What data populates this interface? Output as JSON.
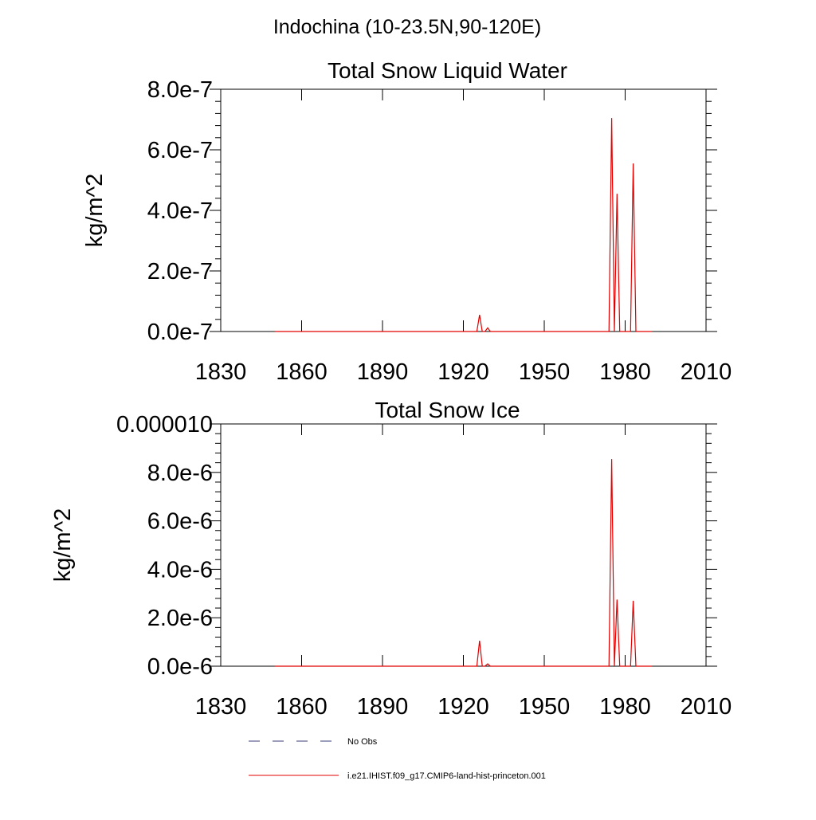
{
  "figure": {
    "title": "Indochina (10-23.5N,90-120E)"
  },
  "legend": {
    "items": [
      {
        "label": "No Obs",
        "color": "#3b3b7a",
        "dash": true
      },
      {
        "label": "i.e21.IHIST.f09_g17.CMIP6-land-hist-princeton.001",
        "color": "#e00000",
        "dash": false
      }
    ]
  },
  "chart_data": [
    {
      "type": "line",
      "title": "Total Snow Liquid Water",
      "xlabel": "",
      "ylabel": "kg/m^2",
      "xlim": [
        1830,
        2010
      ],
      "ylim": [
        0,
        8e-07
      ],
      "grid": false,
      "legend_position": "bottom",
      "xticks": [
        1830,
        1860,
        1890,
        1920,
        1950,
        1980,
        2010
      ],
      "yticks": [
        0,
        2e-07,
        4e-07,
        6e-07,
        8e-07
      ],
      "ytick_labels": [
        "0.0e-7",
        "2.0e-7",
        "4.0e-7",
        "6.0e-7",
        "8.0e-7"
      ],
      "series": [
        {
          "name": "i.e21.IHIST.f09_g17.CMIP6-land-hist-princeton.001",
          "color": "#e00000",
          "x": [
            1850,
            1925,
            1926,
            1927,
            1928,
            1929,
            1930,
            1974,
            1975,
            1976,
            1977,
            1978,
            1982,
            1983,
            1984,
            1990
          ],
          "y": [
            0,
            0,
            5.5e-08,
            0,
            0,
            1.2e-08,
            0,
            0,
            7.05e-07,
            0,
            4.55e-07,
            0,
            0,
            5.55e-07,
            0,
            0
          ]
        }
      ]
    },
    {
      "type": "line",
      "title": "Total Snow Ice",
      "xlabel": "",
      "ylabel": "kg/m^2",
      "xlim": [
        1830,
        2010
      ],
      "ylim": [
        0,
        1e-05
      ],
      "grid": false,
      "legend_position": "bottom",
      "xticks": [
        1830,
        1860,
        1890,
        1920,
        1950,
        1980,
        2010
      ],
      "yticks": [
        0,
        2e-06,
        4e-06,
        6e-06,
        8e-06,
        1e-05
      ],
      "ytick_labels": [
        "0.0e-6",
        "2.0e-6",
        "4.0e-6",
        "6.0e-6",
        "8.0e-6",
        "0.000010"
      ],
      "series": [
        {
          "name": "i.e21.IHIST.f09_g17.CMIP6-land-hist-princeton.001",
          "color": "#e00000",
          "x": [
            1850,
            1925,
            1926,
            1927,
            1928,
            1929,
            1930,
            1974,
            1975,
            1976,
            1977,
            1978,
            1982,
            1983,
            1984,
            1990
          ],
          "y": [
            0,
            0,
            1.05e-06,
            0,
            0,
            1e-07,
            0,
            0,
            8.55e-06,
            0,
            2.75e-06,
            0,
            0,
            2.7e-06,
            0,
            0
          ]
        }
      ]
    }
  ]
}
